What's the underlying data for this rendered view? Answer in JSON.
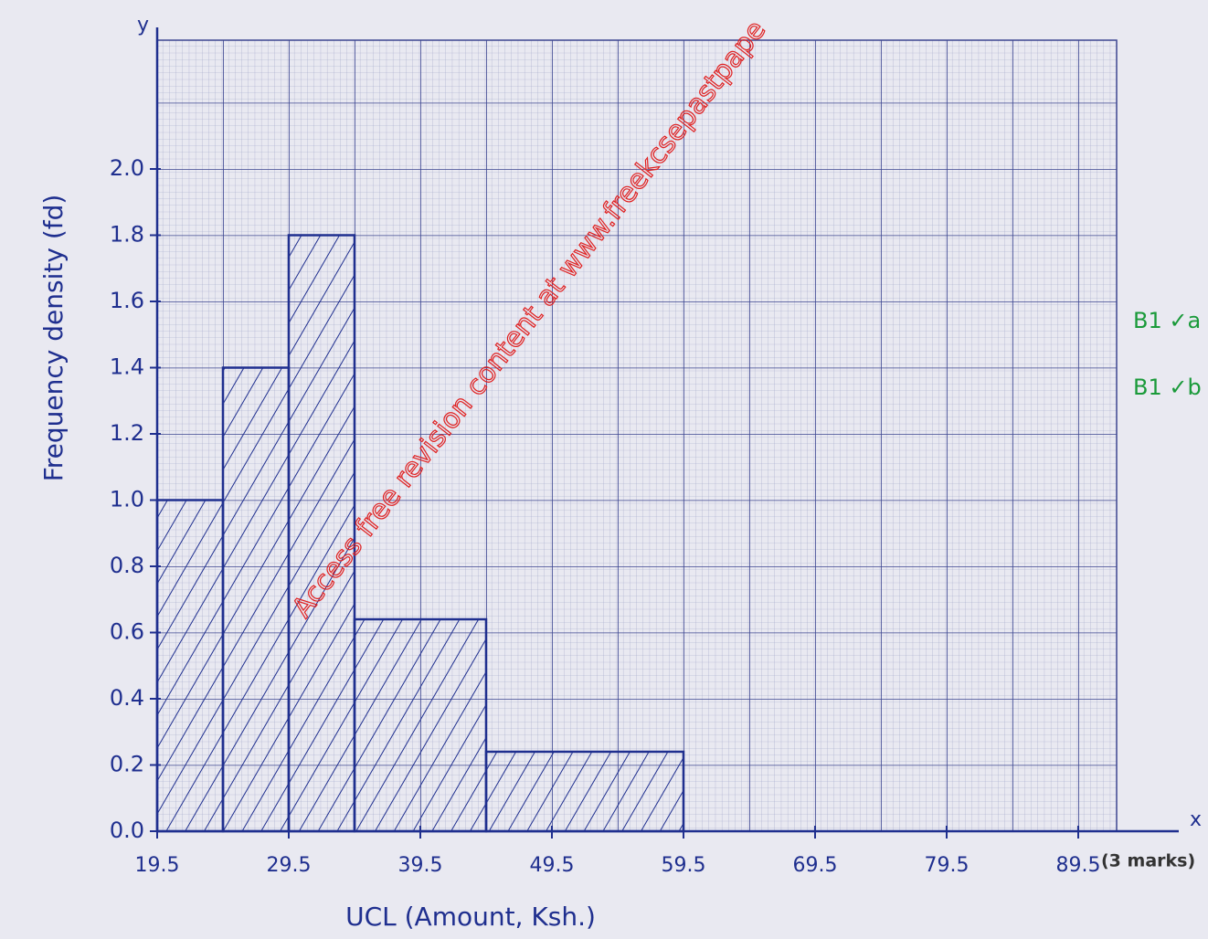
{
  "chart_data": {
    "type": "histogram",
    "x_label": "UCL (Amount, Ksh.)",
    "y_label": "Frequency density (fd)",
    "x_axis_letter": "x",
    "y_axis_letter": "y",
    "note": "(3 marks)",
    "watermark": "Access free revision content at www.freekcsepastpape",
    "marks": [
      "B1 ✓a",
      "B1 ✓b"
    ],
    "bins": [
      19.5,
      24.5,
      29.5,
      34.5,
      44.5,
      59.5
    ],
    "values": [
      1.0,
      1.4,
      1.8,
      0.64,
      0.24
    ],
    "color": "#1f2f8f",
    "xlim": [
      19.5,
      92
    ],
    "ylim": [
      0,
      2.4
    ],
    "xticks": [
      19.5,
      29.5,
      39.5,
      49.5,
      59.5,
      69.5,
      79.5,
      89.5
    ],
    "yticks": [
      {
        "value": 0,
        "label": "0.0"
      },
      0.2,
      0.4,
      0.6,
      0.8,
      {
        "value": 1,
        "label": "1.0"
      },
      1.2,
      1.4,
      1.6,
      1.8,
      {
        "value": 2,
        "label": "2.0"
      }
    ]
  }
}
